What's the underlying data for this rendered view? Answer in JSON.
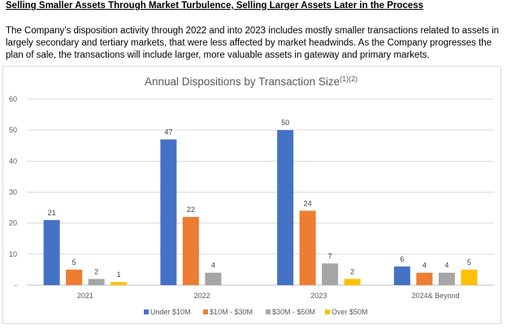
{
  "heading": "Selling Smaller Assets Through Market Turbulence, Selling Larger Assets Later in the Process",
  "paragraph": "The Company’s disposition activity through 2022 and into 2023 includes mostly smaller transactions related to assets in largely secondary and tertiary markets, that were less affected by market headwinds. As the Company progresses the plan of sale, the transactions will include larger, more valuable assets in gateway and primary markets.",
  "chart_data": {
    "type": "bar",
    "title": "Annual Dispositions by Transaction Size",
    "title_superscript": "(1)(2)",
    "xlabel": "",
    "ylabel": "",
    "categories": [
      "2021",
      "2022",
      "2023",
      "2024& Beyond"
    ],
    "series": [
      {
        "name": "Under $10M",
        "values": [
          21,
          47,
          50,
          6
        ],
        "color": "#4472c4"
      },
      {
        "name": "$10M - $30M",
        "values": [
          5,
          22,
          24,
          4
        ],
        "color": "#ed7d31"
      },
      {
        "name": "$30M - $50M",
        "values": [
          2,
          4,
          7,
          4
        ],
        "color": "#a5a5a5"
      },
      {
        "name": "Over $50M",
        "values": [
          1,
          null,
          2,
          5
        ],
        "color": "#ffc000"
      }
    ],
    "ylim": [
      0,
      60
    ],
    "yticks": [
      "-",
      "10",
      "20",
      "30",
      "40",
      "50",
      "60"
    ],
    "grid": true,
    "legend_position": "bottom"
  }
}
